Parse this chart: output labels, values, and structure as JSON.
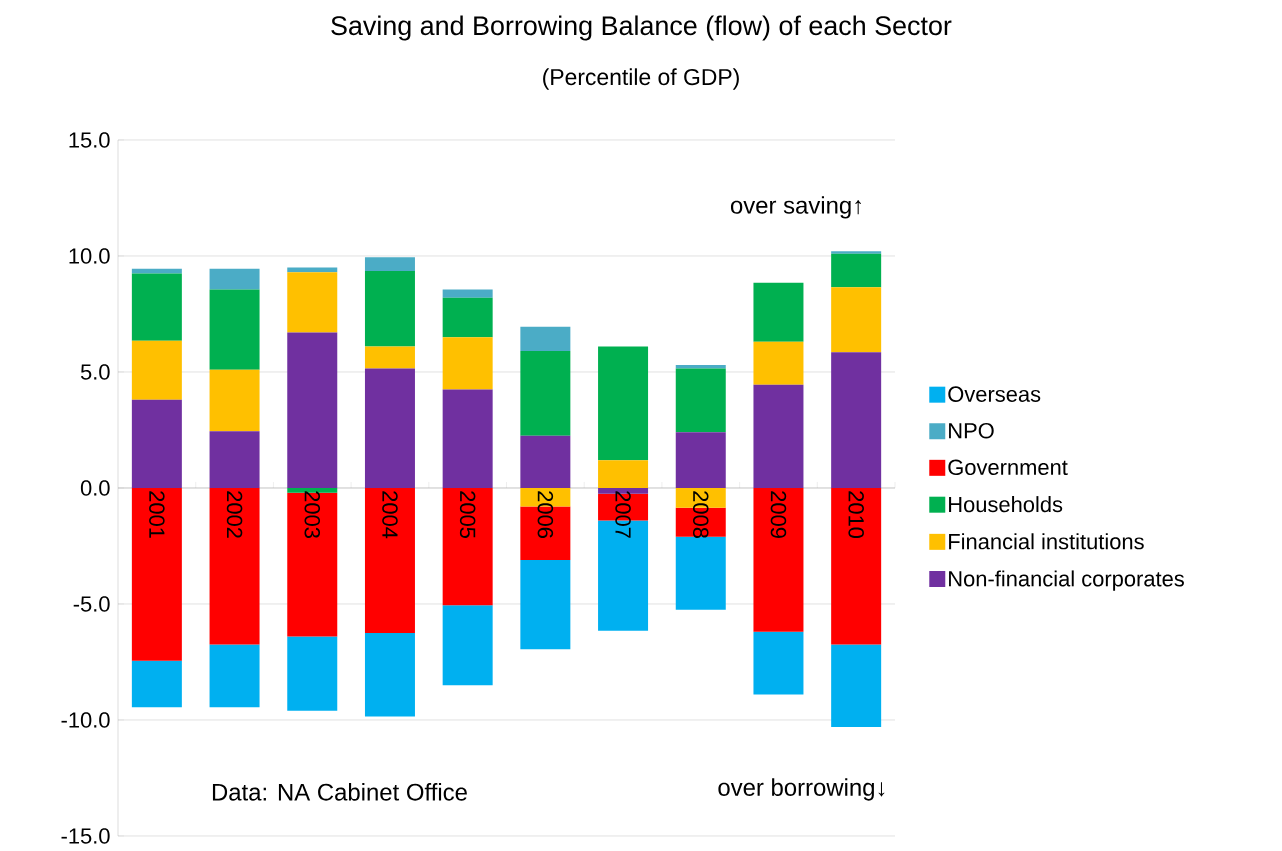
{
  "chart_data": {
    "type": "bar",
    "title": "Saving and Borrowing Balance (flow) of each Sector",
    "subtitle": "(Percentile of GDP)",
    "categories": [
      "2001",
      "2002",
      "2003",
      "2004",
      "2005",
      "2006",
      "2007",
      "2008",
      "2009",
      "2010"
    ],
    "stacked": true,
    "series": [
      {
        "name": "Non-financial corporates",
        "color": "#7030a0",
        "values": [
          3.8,
          2.45,
          6.7,
          5.15,
          4.25,
          2.25,
          -0.25,
          2.4,
          4.45,
          5.85
        ]
      },
      {
        "name": "Financial institutions",
        "color": "#ffc000",
        "values": [
          2.55,
          2.65,
          2.6,
          0.95,
          2.25,
          -0.8,
          1.2,
          -0.85,
          1.85,
          2.8
        ]
      },
      {
        "name": "Households",
        "color": "#00b050",
        "values": [
          2.9,
          3.45,
          -0.2,
          3.25,
          1.7,
          3.65,
          4.9,
          2.75,
          2.55,
          1.45
        ]
      },
      {
        "name": "Government",
        "color": "#ff0000",
        "values": [
          -7.45,
          -6.75,
          -6.2,
          -6.25,
          -5.05,
          -2.3,
          -1.15,
          -1.25,
          -6.2,
          -6.75
        ]
      },
      {
        "name": "NPO",
        "color": "#4bacc6",
        "values": [
          0.2,
          0.9,
          0.2,
          0.6,
          0.35,
          1.05,
          null,
          0.15,
          null,
          0.1
        ]
      },
      {
        "name": "Overseas",
        "color": "#00b0f0",
        "values": [
          -2.0,
          -2.7,
          -3.2,
          -3.6,
          -3.45,
          -3.85,
          -4.75,
          -3.15,
          -2.7,
          -3.55
        ]
      }
    ],
    "ylim": [
      -15,
      15
    ],
    "yticks": [
      {
        "value": -15,
        "label": "-15.0"
      },
      {
        "value": -10,
        "label": "-10.0"
      },
      {
        "value": -5,
        "label": "-5.0"
      },
      {
        "value": 0,
        "label": "0.0"
      },
      {
        "value": 5,
        "label": "5.0"
      },
      {
        "value": 10,
        "label": "10.0"
      },
      {
        "value": 15,
        "label": "15.0"
      }
    ],
    "grid": "y",
    "legend": "right",
    "annotations": [
      "over saving↑",
      "over borrowing↓",
      "Data: NA Cabinet Office"
    ]
  }
}
